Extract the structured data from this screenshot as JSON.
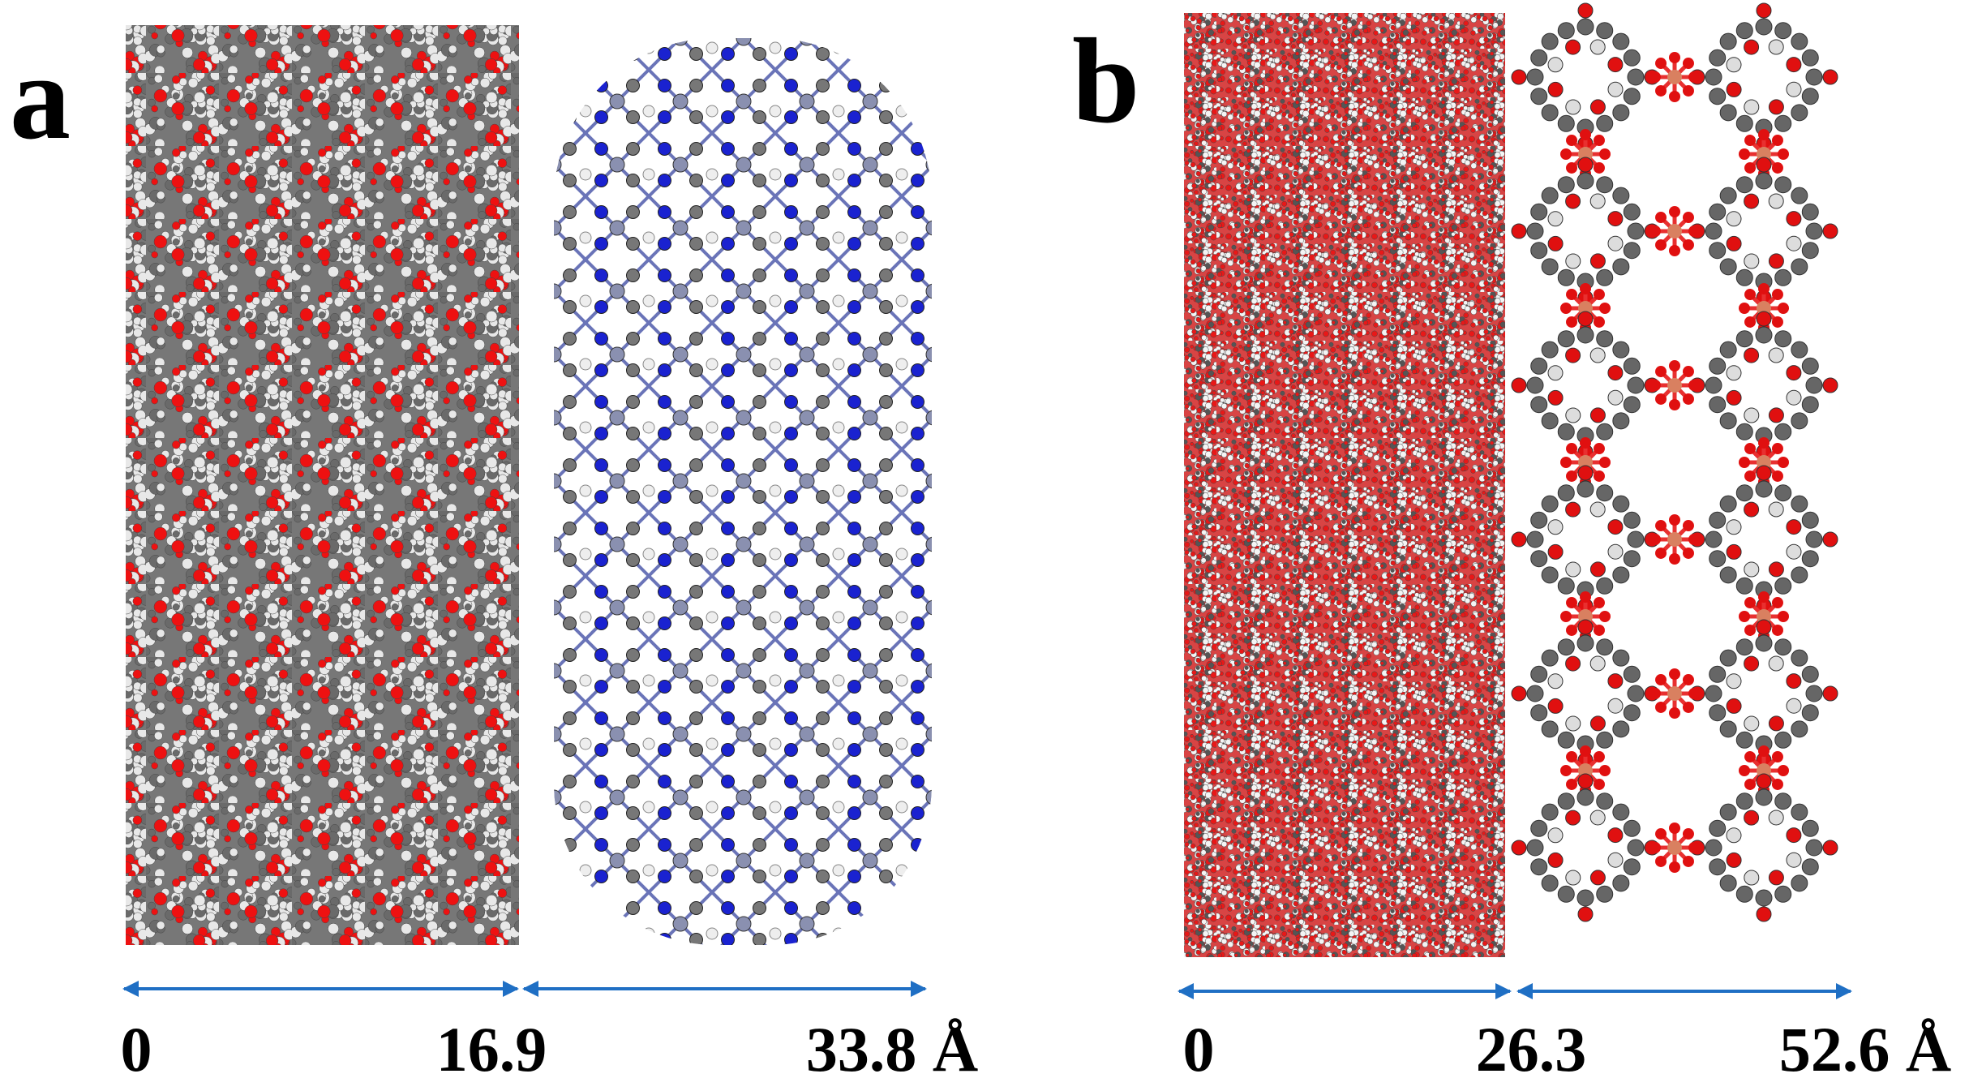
{
  "panels": [
    {
      "label": "a",
      "scale": [
        "0",
        "16.9",
        "33.8 Å"
      ]
    },
    {
      "label": "b",
      "scale": [
        "0",
        "26.3",
        "52.6 Å"
      ]
    }
  ]
}
